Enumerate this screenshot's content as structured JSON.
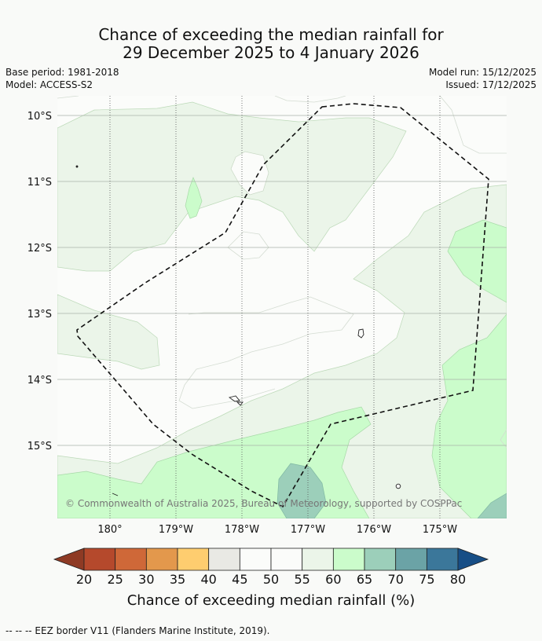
{
  "title": {
    "line1": "Chance of exceeding the median rainfall for",
    "line2": "29 December 2025 to 4 January 2026"
  },
  "meta": {
    "base_period": "Base period: 1981-2018",
    "model": "Model: ACCESS-S2",
    "model_run": "Model run: 15/12/2025",
    "issued": "Issued: 17/12/2025"
  },
  "map": {
    "lat_labels": [
      "10°S",
      "11°S",
      "12°S",
      "13°S",
      "14°S",
      "15°S"
    ],
    "lon_labels": [
      "180°",
      "179°W",
      "178°W",
      "177°W",
      "176°W",
      "175°W"
    ],
    "copyright": "© Commonwealth of Australia 2025, Bureau of Meteorology, supported by COSPPac"
  },
  "colorbar": {
    "label": "Chance of exceeding median rainfall (%)",
    "ticks": [
      "20",
      "25",
      "30",
      "35",
      "40",
      "45",
      "50",
      "55",
      "60",
      "65",
      "70",
      "75",
      "80"
    ],
    "colors": [
      "#8e3a24",
      "#b5492c",
      "#cf6838",
      "#e3984c",
      "#fecd6f",
      "#e9e9e4",
      "#fbfcfa",
      "#fbfcfa",
      "#ebf5e9",
      "#cbfccb",
      "#9ccfba",
      "#6ba3a6",
      "#3b779a",
      "#174e86"
    ]
  },
  "footer": {
    "eez_legend": "--  --  -- EEZ border V11 (Flanders Marine Institute, 2019)."
  }
}
